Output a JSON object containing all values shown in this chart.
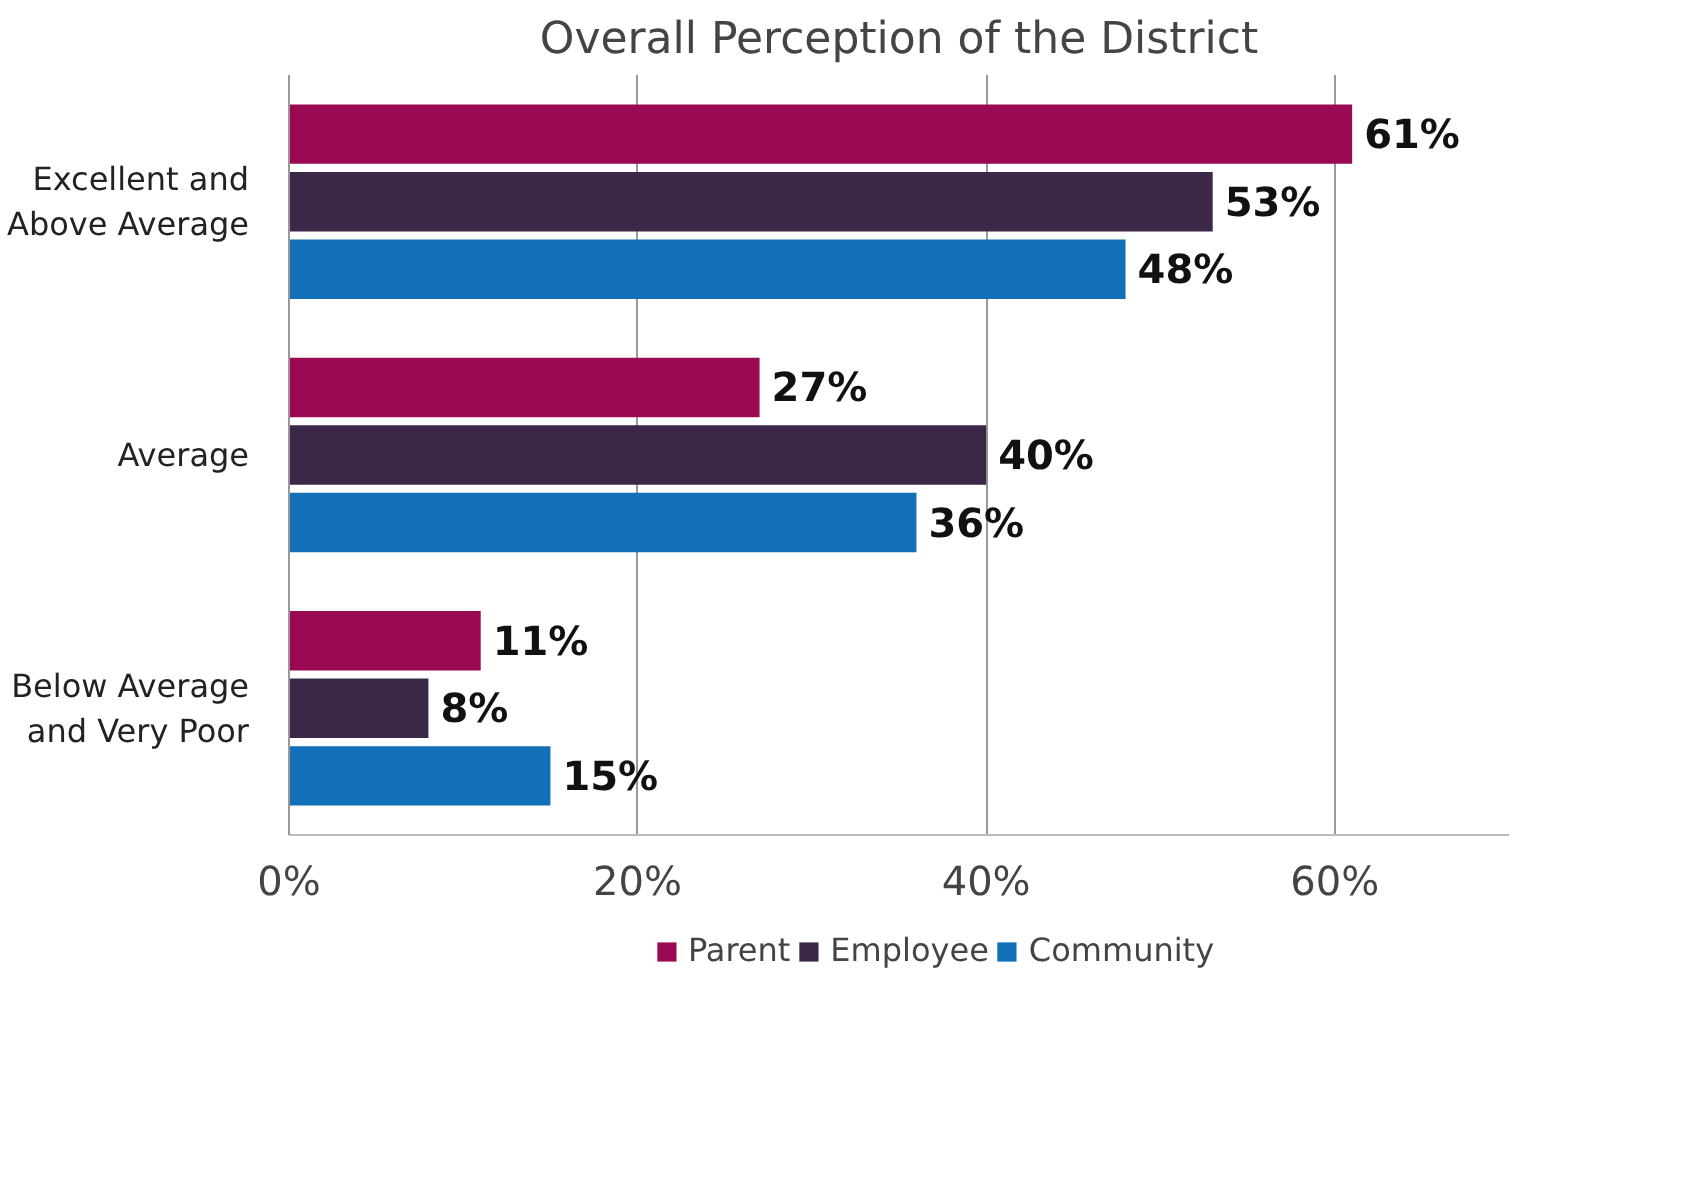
{
  "chart_data": {
    "type": "bar",
    "orientation": "horizontal",
    "title": "Overall Perception of the District",
    "categories": [
      "Excellent and\nAbove Average",
      "Average",
      "Below Average\nand Very Poor"
    ],
    "series": [
      {
        "name": "Parent",
        "color": "#990a52",
        "values": [
          61,
          27,
          11
        ],
        "value_labels": [
          "61%",
          "27%",
          "11%"
        ]
      },
      {
        "name": "Employee",
        "color": "#3b2848",
        "values": [
          53,
          40,
          8
        ],
        "value_labels": [
          "53%",
          "40%",
          "8%"
        ]
      },
      {
        "name": "Community",
        "color": "#1170b8",
        "values": [
          48,
          36,
          15
        ],
        "value_labels": [
          "48%",
          "36%",
          "15%"
        ]
      }
    ],
    "xlim": [
      0,
      70
    ],
    "xticks": [
      {
        "value": 0,
        "label": "0%"
      },
      {
        "value": 20,
        "label": "20%"
      },
      {
        "value": 40,
        "label": "40%"
      },
      {
        "value": 60,
        "label": "60%"
      }
    ],
    "grid": "x",
    "legend": "bottom"
  }
}
